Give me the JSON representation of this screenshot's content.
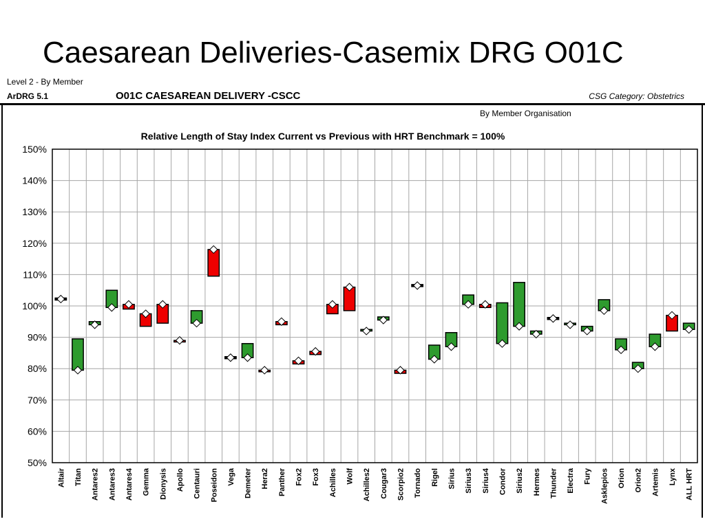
{
  "page": {
    "title": "Caesarean Deliveries-Casemix DRG O01C",
    "level": "Level 2 - By Member",
    "ardrg": "ArDRG 5.1",
    "drg": "O01C CAESAREAN DELIVERY -CSCC",
    "csg": "CSG Category:  Obstetrics",
    "by_member": "By Member Organisation"
  },
  "colors": {
    "improved": "#2e9b2e",
    "worsened": "#ee0000",
    "marker_fill": "#ffffff",
    "grid": "#a6a6a6"
  },
  "chart_data": {
    "type": "floating-bar",
    "title": "Relative Length of Stay Index Current vs Previous with HRT Benchmark = 100%",
    "xlabel": "",
    "ylabel": "",
    "ylim": [
      50,
      150
    ],
    "y_tick_step": 10,
    "y_tick_suffix": "%",
    "grid": true,
    "legend": "none",
    "categories": [
      "Altair",
      "Titan",
      "Antares2",
      "Antares3",
      "Antares4",
      "Gemma",
      "Dionysis",
      "Apollo",
      "Centauri",
      "Poseidon",
      "Vega",
      "Demeter",
      "Hera2",
      "Panther",
      "Fox2",
      "Fox3",
      "Achilles",
      "Wolf",
      "Achilles2",
      "Cougar3",
      "Scorpio2",
      "Tornado",
      "Rigel",
      "Sirius",
      "Sirius3",
      "Sirius4",
      "Condor",
      "Sirius2",
      "Hermes",
      "Thunder",
      "Electra",
      "Fury",
      "Asklepios",
      "Orion",
      "Orion2",
      "Artemis",
      "Lynx",
      "ALL HRT"
    ],
    "series": [
      {
        "name": "Previous",
        "values": [
          102.2,
          89.5,
          95.0,
          105.0,
          99.0,
          93.5,
          94.5,
          88.5,
          98.5,
          109.5,
          83.5,
          88.0,
          79.0,
          94.0,
          81.5,
          84.5,
          97.5,
          98.5,
          92.5,
          96.5,
          78.5,
          106.5,
          87.5,
          91.5,
          103.5,
          99.5,
          101.0,
          107.5,
          92.0,
          96.0,
          94.5,
          93.5,
          102.0,
          89.5,
          82.0,
          91.0,
          92.0,
          94.5
        ]
      },
      {
        "name": "Current",
        "values": [
          102.2,
          79.5,
          94.0,
          99.5,
          100.5,
          97.5,
          100.5,
          89.0,
          94.5,
          118.0,
          83.5,
          83.5,
          79.5,
          95.0,
          82.5,
          85.5,
          100.5,
          106.0,
          92.0,
          95.5,
          79.5,
          106.5,
          83.0,
          87.0,
          100.5,
          100.5,
          88.0,
          93.5,
          91.0,
          96.0,
          94.0,
          92.0,
          98.5,
          86.0,
          80.0,
          87.0,
          97.0,
          92.5
        ]
      }
    ]
  }
}
